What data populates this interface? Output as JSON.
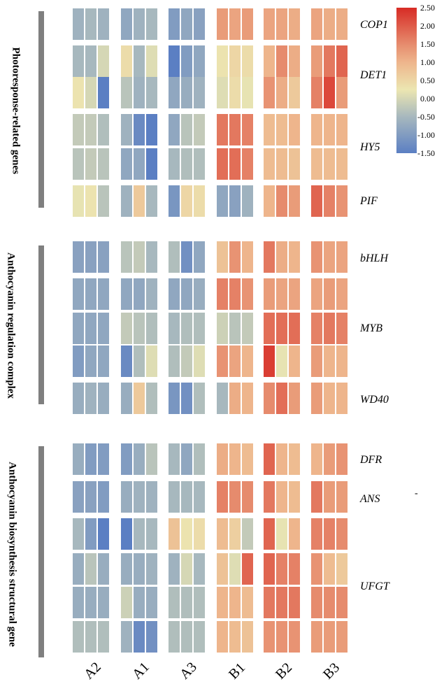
{
  "chart_data": {
    "type": "heatmap",
    "color_scale": {
      "min": -1.5,
      "max": 2.5,
      "stops": [
        {
          "value": -1.5,
          "color": "#5b7fc3"
        },
        {
          "value": -0.5,
          "color": "#a7b8be"
        },
        {
          "value": 0.25,
          "color": "#ece6b1"
        },
        {
          "value": 1.0,
          "color": "#eeb58c"
        },
        {
          "value": 1.5,
          "color": "#e68b6d"
        },
        {
          "value": 2.5,
          "color": "#d72b25"
        }
      ],
      "tick_labels": [
        "2.50",
        "2.00",
        "1.50",
        "1.00",
        "0.50",
        "0.00",
        "-0.50",
        "-1.00",
        "-1.50"
      ]
    },
    "columns": [
      "A2",
      "A1",
      "A3",
      "B1",
      "B2",
      "B3"
    ],
    "groups": [
      {
        "label": "Photoresponse-related genes",
        "genes": [
          {
            "name": "COP1",
            "rows": [
              [
                -0.6,
                -0.5,
                -0.6,
                -0.8,
                -0.6,
                -0.5,
                -1.0,
                -0.8,
                -0.9,
                1.3,
                1.2,
                1.3,
                1.2,
                1.2,
                1.1,
                1.2,
                1.1,
                1.1
              ]
            ]
          },
          {
            "name": "DET1",
            "rows": [
              [
                -0.5,
                -0.5,
                0.0,
                0.4,
                -0.5,
                0.1,
                -1.5,
                -1.0,
                -0.8,
                0.3,
                0.5,
                0.4,
                1.0,
                1.5,
                1.1,
                1.3,
                1.7,
                1.9
              ],
              [
                0.3,
                0.0,
                -1.5,
                -0.3,
                -0.6,
                -0.5,
                -0.8,
                -0.7,
                -0.6,
                0.1,
                0.4,
                0.2,
                1.4,
                1.1,
                0.7,
                1.6,
                2.2,
                1.3
              ]
            ]
          },
          {
            "name": "HY5",
            "rows": [
              [
                -0.2,
                -0.2,
                -0.4,
                -0.6,
                -1.3,
                -1.5,
                -0.8,
                -0.3,
                -0.2,
                1.7,
                1.7,
                1.6,
                0.9,
                0.9,
                1.0,
                1.0,
                1.0,
                1.0
              ],
              [
                -0.3,
                -0.2,
                -0.3,
                -0.8,
                -0.8,
                -1.5,
                -0.5,
                -0.4,
                -0.4,
                1.8,
                1.8,
                1.6,
                0.9,
                0.9,
                0.8,
                0.9,
                0.9,
                0.9
              ]
            ]
          },
          {
            "name": "PIF",
            "rows": [
              [
                0.2,
                0.3,
                -0.3,
                -0.6,
                0.7,
                -0.5,
                -1.1,
                0.5,
                0.4,
                -0.8,
                -0.9,
                -0.6,
                1.0,
                1.5,
                1.3,
                1.9,
                1.6,
                1.4
              ]
            ]
          }
        ]
      },
      {
        "label": "Anthocyanin regulation complex",
        "genes": [
          {
            "name": "bHLH",
            "rows": [
              [
                -0.9,
                -0.9,
                -0.9,
                -0.3,
                -0.2,
                -0.5,
                -0.4,
                -1.2,
                -0.8,
                0.8,
                1.4,
                1.0,
                1.7,
                1.1,
                1.0,
                1.4,
                1.2,
                1.2
              ]
            ]
          },
          {
            "name": "MYB",
            "rows": [
              [
                -0.8,
                -0.8,
                -0.8,
                -0.8,
                -0.8,
                -0.6,
                -0.8,
                -0.8,
                -0.7,
                1.6,
                1.6,
                1.4,
                1.3,
                1.2,
                1.2,
                1.2,
                1.3,
                1.2
              ],
              [
                -0.8,
                -0.8,
                -0.8,
                -0.2,
                -0.3,
                -0.4,
                -0.5,
                -0.4,
                -0.4,
                -0.1,
                -0.3,
                -0.2,
                1.8,
                1.8,
                1.8,
                1.6,
                1.7,
                1.6
              ],
              [
                -1.0,
                -0.8,
                -0.8,
                -1.3,
                -0.4,
                0.1,
                -0.4,
                -0.2,
                0.1,
                1.4,
                1.2,
                1.0,
                2.3,
                0.2,
                1.0,
                1.3,
                1.0,
                1.0
              ]
            ]
          },
          {
            "name": "WD40",
            "rows": [
              [
                -0.7,
                -0.6,
                -0.7,
                -0.7,
                0.7,
                -0.4,
                -1.1,
                -1.2,
                -0.4,
                -0.5,
                1.1,
                1.0,
                1.5,
                1.8,
                1.3,
                1.3,
                1.0,
                1.0
              ]
            ]
          }
        ]
      },
      {
        "label": "Anthocyanin biosynthesis structural gene",
        "genes": [
          {
            "name": "DFR",
            "rows": [
              [
                -0.7,
                -1.0,
                -1.0,
                -1.0,
                -0.7,
                -0.3,
                -0.5,
                -0.8,
                -0.4,
                1.1,
                1.0,
                0.9,
                1.9,
                1.0,
                0.9,
                1.0,
                1.3,
                1.4
              ]
            ]
          },
          {
            "name": "ANS",
            "rows": [
              [
                -0.9,
                -0.9,
                -1.0,
                -0.7,
                -0.6,
                -0.6,
                -0.5,
                -0.5,
                -0.5,
                1.6,
                1.5,
                1.5,
                1.7,
                1.0,
                0.9,
                1.7,
                1.3,
                1.3
              ]
            ]
          },
          {
            "name": "UFGT",
            "rows": [
              [
                -0.5,
                -1.0,
                -1.6,
                -1.5,
                -0.5,
                -0.5,
                0.8,
                0.3,
                0.4,
                0.9,
                0.6,
                -0.2,
                1.9,
                0.2,
                1.0,
                1.6,
                1.6,
                1.5
              ],
              [
                -0.7,
                -0.3,
                -0.7,
                -0.7,
                -0.7,
                -0.6,
                -0.6,
                0.0,
                -0.5,
                0.8,
                0.1,
                1.9,
                1.9,
                1.6,
                1.6,
                1.4,
                0.9,
                0.7
              ],
              [
                -0.7,
                -0.7,
                -0.7,
                -0.1,
                -0.7,
                -0.7,
                -0.4,
                -0.4,
                -0.4,
                1.0,
                1.0,
                0.9,
                1.7,
                1.7,
                1.7,
                1.5,
                1.5,
                1.5
              ],
              [
                -0.4,
                -0.4,
                -0.4,
                -0.6,
                -1.3,
                -1.2,
                -0.4,
                -0.4,
                -0.4,
                1.0,
                0.9,
                0.8,
                1.4,
                1.4,
                1.4,
                1.3,
                1.3,
                1.3
              ]
            ]
          }
        ]
      }
    ]
  },
  "stray_mark": "-"
}
